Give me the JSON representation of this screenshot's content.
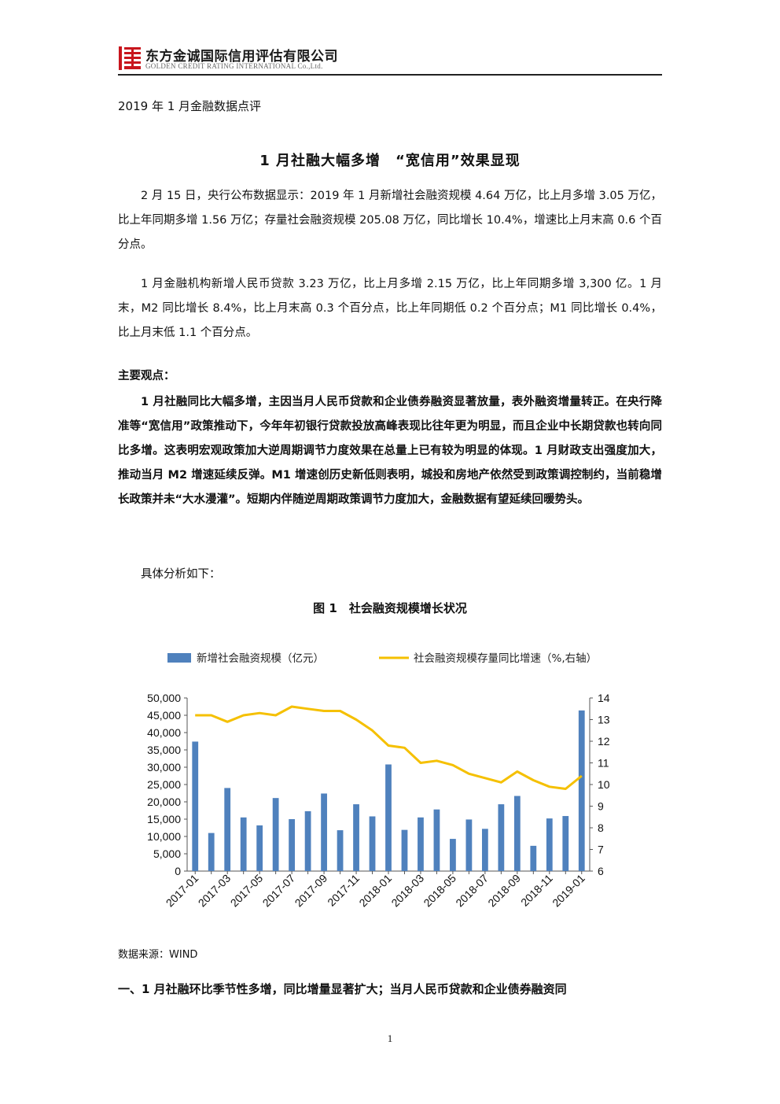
{
  "header": {
    "company_cn": "东方金诚国际信用评估有限公司",
    "company_en": "GOLDEN CREDIT RATING INTERNATIONAL Co.,Ltd.",
    "logo_color": "#c8161d"
  },
  "doc_label": "2019 年 1 月金融数据点评",
  "title": "1 月社融大幅多增　“宽信用”效果显现",
  "paragraphs": {
    "p1": "2 月 15 日，央行公布数据显示：2019 年 1 月新增社会融资规模 4.64 万亿，比上月多增 3.05 万亿，比上年同期多增 1.56 万亿；存量社会融资规模 205.08 万亿，同比增长 10.4%，增速比上月末高 0.6 个百分点。",
    "p2": "1 月金融机构新增人民币贷款 3.23 万亿，比上月多增 2.15 万亿，比上年同期多增 3,300 亿。1 月末，M2 同比增长 8.4%，比上月末高 0.3 个百分点，比上年同期低 0.2 个百分点；M1 同比增长 0.4%，比上月末低 1.1 个百分点。",
    "points_heading": "主要观点：",
    "p3": "1 月社融同比大幅多增，主因当月人民币贷款和企业债券融资显著放量，表外融资增量转正。在央行降准等“宽信用”政策推动下，今年年初银行贷款投放高峰表现比往年更为明显，而且企业中长期贷款也转向同比多增。这表明宏观政策加大逆周期调节力度效果在总量上已有较为明显的体现。1 月财政支出强度加大，推动当月 M2 增速延续反弹。M1 增速创历史新低则表明，城投和房地产依然受到政策调控制约，当前稳增长政策并未“大水漫灌”。短期内伴随逆周期政策调节力度加大，金融数据有望延续回暖势头。",
    "p4": "具体分析如下："
  },
  "figure_title": "图 1　社会融资规模增长状况",
  "source": "数据来源：WIND",
  "section_heading": "一、1 月社融环比季节性多增，同比增量显著扩大；当月人民币贷款和企业债券融资同",
  "page_number": "1",
  "chart_data": {
    "type": "bar",
    "months": [
      "2017-01",
      "2017-02",
      "2017-03",
      "2017-04",
      "2017-05",
      "2017-06",
      "2017-07",
      "2017-08",
      "2017-09",
      "2017-10",
      "2017-11",
      "2017-12",
      "2018-01",
      "2018-02",
      "2018-03",
      "2018-04",
      "2018-05",
      "2018-06",
      "2018-07",
      "2018-08",
      "2018-09",
      "2018-10",
      "2018-11",
      "2018-12",
      "2019-01"
    ],
    "x_tick_labels": [
      "2017-01",
      "2017-03",
      "2017-05",
      "2017-07",
      "2017-09",
      "2017-11",
      "2018-01",
      "2018-03",
      "2018-05",
      "2018-07",
      "2018-09",
      "2018-11",
      "2019-01"
    ],
    "series": [
      {
        "name": "新增社会融资规模（亿元）",
        "kind": "bar",
        "axis": "left",
        "color": "#4f81bd",
        "values": [
          37400,
          11000,
          24000,
          15500,
          13200,
          21100,
          15000,
          17300,
          22400,
          11800,
          19300,
          15800,
          30800,
          11900,
          15500,
          17800,
          9300,
          14900,
          12200,
          19300,
          21700,
          7300,
          15200,
          15900,
          46400
        ]
      },
      {
        "name": "社会融资规模存量同比增速（%,右轴）",
        "kind": "line",
        "axis": "right",
        "color": "#f5c000",
        "values": [
          13.2,
          13.2,
          12.9,
          13.2,
          13.3,
          13.2,
          13.6,
          13.5,
          13.4,
          13.4,
          13.0,
          12.5,
          11.8,
          11.7,
          11.0,
          11.1,
          10.9,
          10.5,
          10.3,
          10.1,
          10.6,
          10.2,
          9.9,
          9.8,
          10.4
        ]
      }
    ],
    "y_left": {
      "min": 0,
      "max": 50000,
      "step": 5000,
      "tick_labels": [
        "0",
        "5,000",
        "10,000",
        "15,000",
        "20,000",
        "25,000",
        "30,000",
        "35,000",
        "40,000",
        "45,000",
        "50,000"
      ]
    },
    "y_right": {
      "min": 6,
      "max": 14,
      "step": 1,
      "tick_labels": [
        "6",
        "7",
        "8",
        "9",
        "10",
        "11",
        "12",
        "13",
        "14"
      ]
    },
    "legend_position": "top",
    "grid": false
  }
}
